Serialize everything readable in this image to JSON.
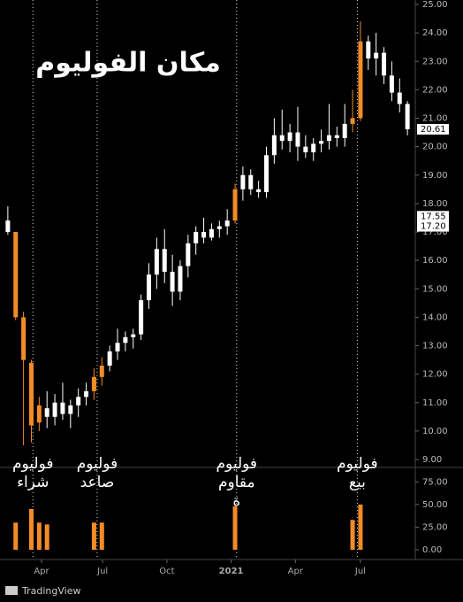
{
  "chart_data": {
    "type": "candlestick",
    "title": "مكان الفوليوم",
    "xlim": [
      -1,
      52
    ],
    "xticks": [
      {
        "value": 4.3,
        "label": "Apr"
      },
      {
        "value": 12.1,
        "label": "Jul"
      },
      {
        "value": 20.3,
        "label": "Oct"
      },
      {
        "value": 28.5,
        "label": "2021"
      },
      {
        "value": 36.7,
        "label": "Apr"
      },
      {
        "value": 45,
        "label": "Jul"
      }
    ],
    "ylim": [
      9,
      25
    ],
    "yticks": [
      {
        "value": 9,
        "label": "9.00"
      },
      {
        "value": 10,
        "label": "10.00"
      },
      {
        "value": 11,
        "label": "11.00"
      },
      {
        "value": 12,
        "label": "12.00"
      },
      {
        "value": 13,
        "label": "13.00"
      },
      {
        "value": 14,
        "label": "14.00"
      },
      {
        "value": 15,
        "label": "15.00"
      },
      {
        "value": 16,
        "label": "16.00"
      },
      {
        "value": 17,
        "label": "17.00"
      },
      {
        "value": 18,
        "label": "18.00"
      },
      {
        "value": 19,
        "label": "19.00"
      },
      {
        "value": 20,
        "label": "20.00"
      },
      {
        "value": 21,
        "label": "21.00"
      },
      {
        "value": 22,
        "label": "22.00"
      },
      {
        "value": 23,
        "label": "23.00"
      },
      {
        "value": 24,
        "label": "24.00"
      },
      {
        "value": 25,
        "label": "25.00"
      }
    ],
    "price_labels": [
      {
        "value": 20.61,
        "label": "20.61"
      },
      {
        "value": 17.55,
        "label": "17.55"
      },
      {
        "value": 17.2,
        "label": "17.20"
      }
    ],
    "open": [
      17.4,
      17.0,
      14.0,
      12.4,
      10.3,
      10.8,
      10.5,
      11.0,
      10.6,
      10.9,
      11.2,
      11.4,
      11.9,
      12.3,
      12.8,
      13.1,
      13.3,
      13.4,
      14.6,
      15.5,
      16.4,
      15.6,
      14.9,
      15.8,
      16.6,
      17.0,
      16.8,
      17.1,
      17.2,
      17.4,
      18.5,
      19.0,
      18.5,
      18.4,
      19.7,
      20.4,
      20.2,
      20.5,
      20.0,
      19.8,
      20.1,
      20.2,
      20.4,
      20.3,
      20.8,
      21.0,
      23.7,
      23.1,
      23.3,
      22.5,
      21.9,
      21.5
    ],
    "high": [
      17.9,
      17.0,
      14.2,
      12.5,
      11.2,
      11.4,
      11.3,
      11.7,
      11.1,
      11.5,
      11.7,
      12.2,
      12.6,
      13.0,
      13.6,
      13.5,
      13.6,
      14.8,
      15.9,
      16.8,
      17.1,
      16.2,
      16.0,
      16.9,
      17.2,
      17.5,
      17.3,
      17.4,
      17.8,
      18.7,
      19.3,
      19.2,
      18.8,
      20.0,
      21.0,
      21.3,
      20.8,
      21.4,
      20.4,
      20.3,
      20.6,
      21.5,
      20.7,
      21.5,
      22.0,
      24.4,
      23.9,
      24.0,
      23.5,
      23.0,
      22.4,
      21.6
    ],
    "low": [
      16.9,
      13.9,
      9.5,
      9.6,
      10.0,
      10.1,
      10.2,
      10.4,
      10.1,
      10.5,
      10.9,
      11.1,
      11.6,
      12.1,
      12.5,
      12.8,
      12.9,
      13.2,
      14.3,
      15.0,
      15.2,
      14.4,
      14.6,
      15.4,
      16.2,
      16.6,
      16.7,
      16.8,
      16.9,
      17.3,
      18.1,
      18.3,
      18.2,
      18.2,
      19.4,
      19.9,
      19.8,
      19.5,
      19.6,
      19.5,
      19.8,
      19.9,
      20.0,
      20.0,
      20.5,
      20.9,
      22.7,
      22.5,
      22.2,
      21.6,
      21.2,
      20.4
    ],
    "close": [
      17.0,
      14.0,
      12.5,
      10.2,
      10.9,
      10.5,
      11.0,
      10.6,
      10.9,
      11.2,
      11.4,
      11.9,
      12.3,
      12.8,
      13.1,
      13.3,
      13.4,
      14.6,
      15.5,
      16.4,
      15.6,
      14.9,
      15.8,
      16.6,
      17.0,
      16.8,
      17.1,
      17.2,
      17.4,
      18.5,
      19.0,
      18.5,
      18.4,
      19.7,
      20.4,
      20.2,
      20.5,
      20.0,
      19.8,
      20.1,
      20.2,
      20.4,
      20.3,
      20.8,
      21.0,
      23.7,
      23.1,
      23.3,
      22.5,
      21.9,
      21.5,
      20.61
    ],
    "colors": [
      "#ffffff",
      "#f28c28",
      "#f28c28",
      "#f28c28",
      "#f28c28",
      "#ffffff",
      "#ffffff",
      "#ffffff",
      "#ffffff",
      "#ffffff",
      "#ffffff",
      "#f28c28",
      "#f28c28",
      "#ffffff",
      "#ffffff",
      "#ffffff",
      "#ffffff",
      "#ffffff",
      "#ffffff",
      "#ffffff",
      "#ffffff",
      "#ffffff",
      "#ffffff",
      "#ffffff",
      "#ffffff",
      "#ffffff",
      "#ffffff",
      "#ffffff",
      "#ffffff",
      "#f28c28",
      "#ffffff",
      "#ffffff",
      "#ffffff",
      "#ffffff",
      "#ffffff",
      "#ffffff",
      "#ffffff",
      "#ffffff",
      "#ffffff",
      "#ffffff",
      "#ffffff",
      "#ffffff",
      "#ffffff",
      "#ffffff",
      "#f28c28",
      "#f28c28",
      "#ffffff",
      "#ffffff",
      "#ffffff",
      "#ffffff",
      "#ffffff",
      "#ffffff"
    ],
    "volume": [
      null,
      30,
      null,
      45,
      30,
      28,
      null,
      null,
      null,
      null,
      null,
      30,
      30,
      null,
      null,
      null,
      null,
      null,
      null,
      null,
      null,
      null,
      null,
      null,
      null,
      null,
      null,
      null,
      null,
      48,
      null,
      null,
      null,
      null,
      null,
      null,
      null,
      null,
      null,
      null,
      null,
      null,
      null,
      null,
      33,
      50,
      null,
      null,
      null,
      null,
      null,
      null
    ],
    "volume_color": "#f28c28",
    "volume_ylim": [
      0,
      89
    ],
    "volume_ticks": [
      {
        "value": 0,
        "label": "0.00"
      },
      {
        "value": 25,
        "label": "25.00"
      },
      {
        "value": 50,
        "label": "50.00"
      },
      {
        "value": 75,
        "label": "75.00"
      }
    ],
    "annotations": [
      {
        "x": 3.2,
        "lines": [
          "فوليوم",
          "شراء"
        ]
      },
      {
        "x": 11.4,
        "lines": [
          "فوليوم",
          "صاعد"
        ]
      },
      {
        "x": 29.2,
        "lines": [
          "فوليوم",
          "مقاوم",
          "ة"
        ]
      },
      {
        "x": 44.6,
        "lines": [
          "فوليوم",
          "بيع"
        ]
      }
    ],
    "brand": "TradingView"
  }
}
